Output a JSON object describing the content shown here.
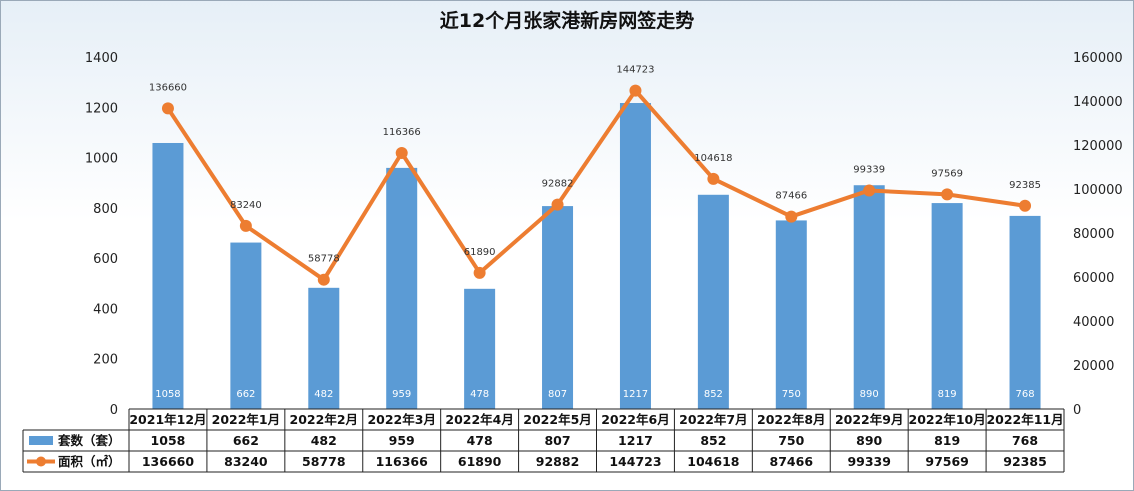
{
  "chart_data": {
    "type": "bar",
    "title": "近12个月张家港新房网签走势",
    "categories": [
      "2021年12月",
      "2022年1月",
      "2022年2月",
      "2022年3月",
      "2022年4月",
      "2022年5月",
      "2022年6月",
      "2022年7月",
      "2022年8月",
      "2022年9月",
      "2022年10月",
      "2022年11月"
    ],
    "series": [
      {
        "name": "套数（套）",
        "type": "bar",
        "axis": "left",
        "color": "#5b9bd5",
        "values": [
          1058,
          662,
          482,
          959,
          478,
          807,
          1217,
          852,
          750,
          890,
          819,
          768
        ]
      },
      {
        "name": "面积（㎡）",
        "type": "line",
        "axis": "right",
        "color": "#ed7d31",
        "values": [
          136660,
          83240,
          58778,
          116366,
          61890,
          92882,
          144723,
          104618,
          87466,
          99339,
          97569,
          92385
        ]
      }
    ],
    "y_left": {
      "min": 0,
      "max": 1400,
      "step": 200,
      "ticks": [
        "0",
        "200",
        "400",
        "600",
        "800",
        "1000",
        "1200",
        "1400"
      ]
    },
    "y_right": {
      "min": 0,
      "max": 160000,
      "step": 20000,
      "ticks": [
        "0",
        "20000",
        "40000",
        "60000",
        "80000",
        "100000",
        "120000",
        "140000",
        "160000"
      ]
    },
    "grid": false,
    "legend": "data-table-bottom"
  }
}
